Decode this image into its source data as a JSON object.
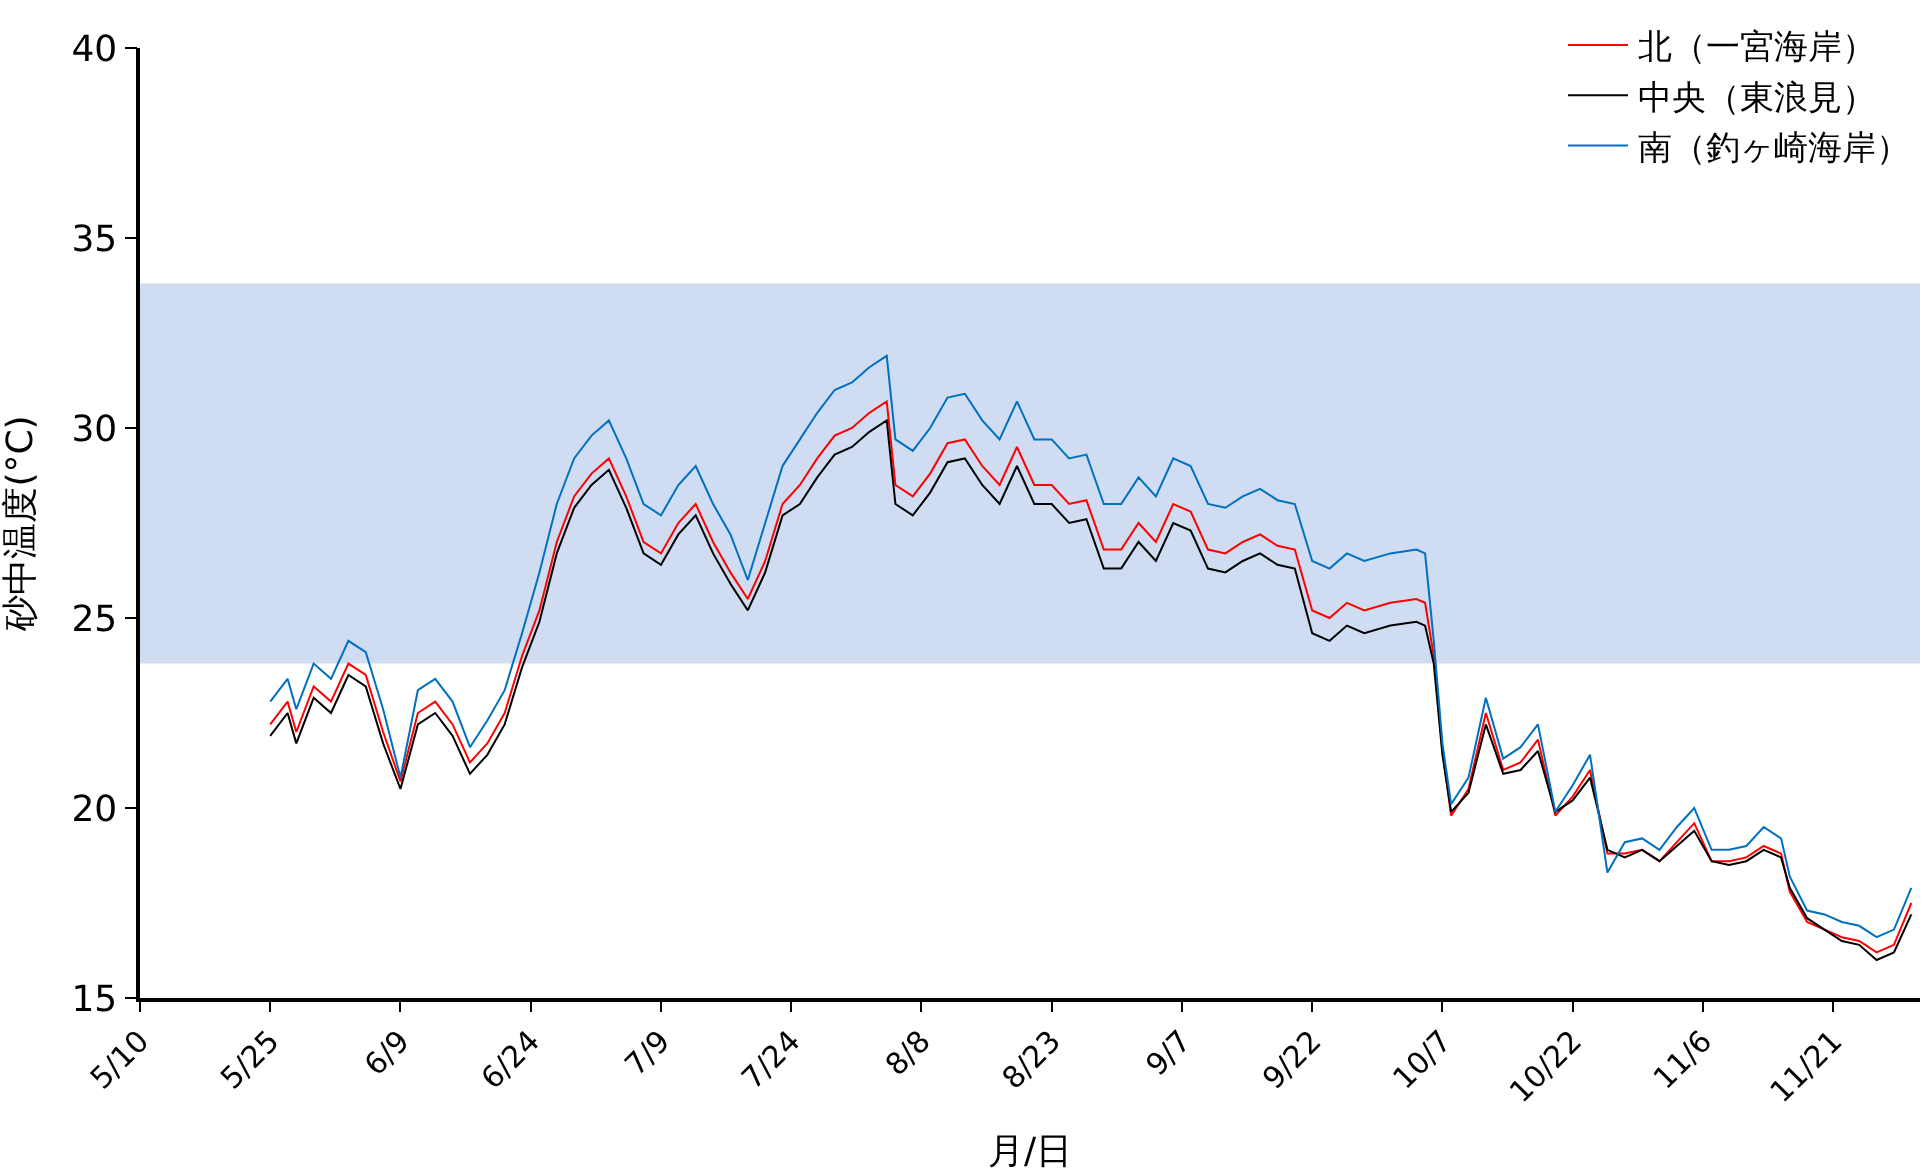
{
  "chart_data": {
    "type": "line",
    "xlabel": "月/日",
    "ylabel": "砂中温度(°C)",
    "x": [
      "--05-25",
      "--05-27",
      "--05-28",
      "--05-30",
      "--06-01",
      "--06-03",
      "--06-05",
      "--06-07",
      "--06-09",
      "--06-11",
      "--06-13",
      "--06-15",
      "--06-17",
      "--06-19",
      "--06-21",
      "--06-23",
      "--06-25",
      "--06-27",
      "--06-29",
      "--07-01",
      "--07-03",
      "--07-05",
      "--07-07",
      "--07-09",
      "--07-11",
      "--07-13",
      "--07-15",
      "--07-17",
      "--07-19",
      "--07-21",
      "--07-23",
      "--07-25",
      "--07-27",
      "--07-29",
      "--07-31",
      "--08-02",
      "--08-04",
      "--08-05",
      "--08-07",
      "--08-09",
      "--08-11",
      "--08-13",
      "--08-15",
      "--08-17",
      "--08-19",
      "--08-21",
      "--08-23",
      "--08-25",
      "--08-27",
      "--08-29",
      "--08-31",
      "--09-02",
      "--09-04",
      "--09-06",
      "--09-08",
      "--09-10",
      "--09-12",
      "--09-14",
      "--09-16",
      "--09-18",
      "--09-20",
      "--09-22",
      "--09-24",
      "--09-26",
      "--09-28",
      "--10-01",
      "--10-04",
      "--10-05",
      "--10-06",
      "--10-07",
      "--10-08",
      "--10-10",
      "--10-12",
      "--10-14",
      "--10-16",
      "--10-18",
      "--10-20",
      "--10-22",
      "--10-24",
      "--10-26",
      "--10-28",
      "--10-30",
      "--11-01",
      "--11-03",
      "--11-05",
      "--11-07",
      "--11-09",
      "--11-11",
      "--11-13",
      "--11-15",
      "--11-16",
      "--11-18",
      "--11-20",
      "--11-22",
      "--11-24",
      "--11-26",
      "--11-28",
      "--11-30"
    ],
    "series": [
      {
        "name": "北（一宮海岸）",
        "color": "#ff0000",
        "values": [
          22.2,
          22.8,
          22.0,
          23.2,
          22.8,
          23.8,
          23.5,
          22.0,
          20.7,
          22.5,
          22.8,
          22.2,
          21.2,
          21.7,
          22.5,
          24.0,
          25.2,
          27.0,
          28.2,
          28.8,
          29.2,
          28.2,
          27.0,
          26.7,
          27.5,
          28.0,
          27.0,
          26.2,
          25.5,
          26.5,
          28.0,
          28.5,
          29.2,
          29.8,
          30.0,
          30.4,
          30.7,
          28.5,
          28.2,
          28.8,
          29.6,
          29.7,
          29.0,
          28.5,
          29.5,
          28.5,
          28.5,
          28.0,
          28.1,
          26.8,
          26.8,
          27.5,
          27.0,
          28.0,
          27.8,
          26.8,
          26.7,
          27.0,
          27.2,
          26.9,
          26.8,
          25.2,
          25.0,
          25.4,
          25.2,
          25.4,
          25.5,
          25.4,
          24.0,
          21.5,
          19.8,
          20.5,
          22.5,
          21.0,
          21.2,
          21.8,
          19.8,
          20.3,
          21.0,
          18.8,
          18.8,
          18.9,
          18.6,
          19.1,
          19.6,
          18.6,
          18.6,
          18.7,
          19.0,
          18.8,
          17.8,
          17.0,
          16.8,
          16.6,
          16.5,
          16.2,
          16.4,
          17.5
        ]
      },
      {
        "name": "中央（東浪見）",
        "color": "#000000",
        "values": [
          21.9,
          22.5,
          21.7,
          22.9,
          22.5,
          23.5,
          23.2,
          21.7,
          20.5,
          22.2,
          22.5,
          21.9,
          20.9,
          21.4,
          22.2,
          23.7,
          24.9,
          26.7,
          27.9,
          28.5,
          28.9,
          27.9,
          26.7,
          26.4,
          27.2,
          27.7,
          26.7,
          25.9,
          25.2,
          26.2,
          27.7,
          28.0,
          28.7,
          29.3,
          29.5,
          29.9,
          30.2,
          28.0,
          27.7,
          28.3,
          29.1,
          29.2,
          28.5,
          28.0,
          29.0,
          28.0,
          28.0,
          27.5,
          27.6,
          26.3,
          26.3,
          27.0,
          26.5,
          27.5,
          27.3,
          26.3,
          26.2,
          26.5,
          26.7,
          26.4,
          26.3,
          24.6,
          24.4,
          24.8,
          24.6,
          24.8,
          24.9,
          24.8,
          23.8,
          21.4,
          19.9,
          20.4,
          22.2,
          20.9,
          21.0,
          21.5,
          19.9,
          20.2,
          20.8,
          18.9,
          18.7,
          18.9,
          18.6,
          19.0,
          19.4,
          18.6,
          18.5,
          18.6,
          18.9,
          18.7,
          17.9,
          17.1,
          16.8,
          16.5,
          16.4,
          16.0,
          16.2,
          17.2
        ]
      },
      {
        "name": "南（釣ヶ崎海岸）",
        "color": "#0070c0",
        "values": [
          22.8,
          23.4,
          22.6,
          23.8,
          23.4,
          24.4,
          24.1,
          22.6,
          20.8,
          23.1,
          23.4,
          22.8,
          21.6,
          22.3,
          23.1,
          24.6,
          26.2,
          28.0,
          29.2,
          29.8,
          30.2,
          29.2,
          28.0,
          27.7,
          28.5,
          29.0,
          28.0,
          27.2,
          26.0,
          27.5,
          29.0,
          29.7,
          30.4,
          31.0,
          31.2,
          31.6,
          31.9,
          29.7,
          29.4,
          30.0,
          30.8,
          30.9,
          30.2,
          29.7,
          30.7,
          29.7,
          29.7,
          29.2,
          29.3,
          28.0,
          28.0,
          28.7,
          28.2,
          29.2,
          29.0,
          28.0,
          27.9,
          28.2,
          28.4,
          28.1,
          28.0,
          26.5,
          26.3,
          26.7,
          26.5,
          26.7,
          26.8,
          26.7,
          24.4,
          21.7,
          20.1,
          20.8,
          22.9,
          21.3,
          21.6,
          22.2,
          19.9,
          20.6,
          21.4,
          18.3,
          19.1,
          19.2,
          18.9,
          19.5,
          20.0,
          18.9,
          18.9,
          19.0,
          19.5,
          19.2,
          18.2,
          17.3,
          17.2,
          17.0,
          16.9,
          16.6,
          16.8,
          17.9
        ]
      }
    ],
    "xlim": [
      "--05-10",
      "--12-01"
    ],
    "xticks": [
      {
        "value": "--05-10",
        "label": "5/10"
      },
      {
        "value": "--05-25",
        "label": "5/25"
      },
      {
        "value": "--06-09",
        "label": "6/9"
      },
      {
        "value": "--06-24",
        "label": "6/24"
      },
      {
        "value": "--07-09",
        "label": "7/9"
      },
      {
        "value": "--07-24",
        "label": "7/24"
      },
      {
        "value": "--08-08",
        "label": "8/8"
      },
      {
        "value": "--08-23",
        "label": "8/23"
      },
      {
        "value": "--09-07",
        "label": "9/7"
      },
      {
        "value": "--09-22",
        "label": "9/22"
      },
      {
        "value": "--10-07",
        "label": "10/7"
      },
      {
        "value": "--10-22",
        "label": "10/22"
      },
      {
        "value": "--11-06",
        "label": "11/6"
      },
      {
        "value": "--11-21",
        "label": "11/21"
      }
    ],
    "ylim": [
      15,
      40
    ],
    "yticks": [
      15,
      20,
      25,
      30,
      35,
      40
    ],
    "bands": [
      {
        "axis": "y",
        "from": 23.8,
        "to": 33.8,
        "color": "#cfdcf1"
      }
    ],
    "grid": false,
    "legend": "top right",
    "marker": "none",
    "line_style": "solid"
  }
}
